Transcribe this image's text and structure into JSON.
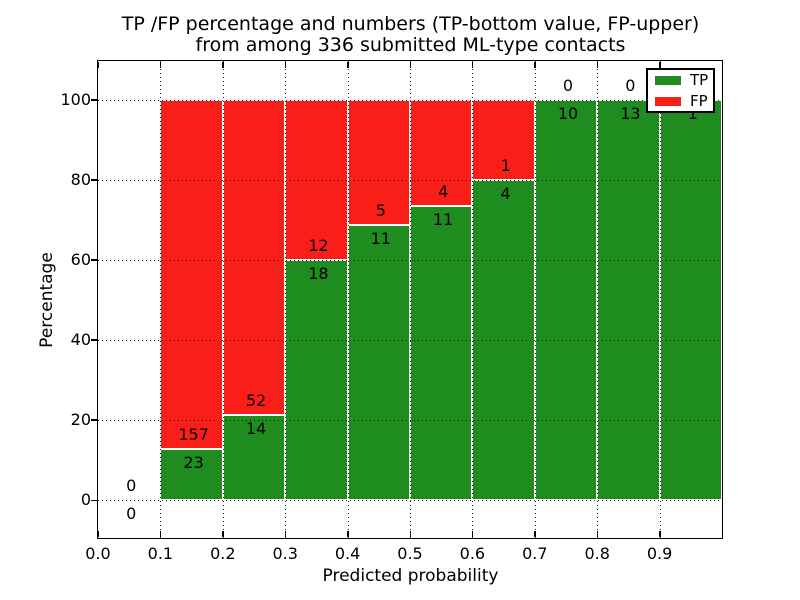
{
  "chart_data": {
    "type": "bar",
    "stacked": true,
    "title_line1": "TP /FP percentage and numbers (TP-bottom value, FP-upper)",
    "title_line2": "from among 336 submitted ML-type contacts",
    "xlabel": "Predicted probability",
    "ylabel": "Percentage",
    "xlim": [
      0.0,
      1.0
    ],
    "ylim": [
      -10,
      110
    ],
    "grid": "dotted both axes, drawn over bars",
    "yticks": [
      0,
      20,
      40,
      60,
      80,
      100
    ],
    "ytick_labels": [
      "0",
      "20",
      "40",
      "60",
      "80",
      "100"
    ],
    "xticks": [
      0.0,
      0.1,
      0.2,
      0.3,
      0.4,
      0.5,
      0.6,
      0.7,
      0.8,
      0.9
    ],
    "xtick_labels": [
      "0.0",
      "0.1",
      "0.2",
      "0.3",
      "0.4",
      "0.5",
      "0.6",
      "0.7",
      "0.8",
      "0.9"
    ],
    "bin_width": 0.1,
    "bins": [
      {
        "x_start": 0.0,
        "tp_count": 0,
        "fp_count": 0,
        "tp_pct": 0,
        "fp_pct": 0
      },
      {
        "x_start": 0.1,
        "tp_count": 23,
        "fp_count": 157,
        "tp_pct": 12.78,
        "fp_pct": 87.22
      },
      {
        "x_start": 0.2,
        "tp_count": 14,
        "fp_count": 52,
        "tp_pct": 21.21,
        "fp_pct": 78.79
      },
      {
        "x_start": 0.3,
        "tp_count": 18,
        "fp_count": 12,
        "tp_pct": 60.0,
        "fp_pct": 40.0
      },
      {
        "x_start": 0.4,
        "tp_count": 11,
        "fp_count": 5,
        "tp_pct": 68.75,
        "fp_pct": 31.25
      },
      {
        "x_start": 0.5,
        "tp_count": 11,
        "fp_count": 4,
        "tp_pct": 73.33,
        "fp_pct": 26.67
      },
      {
        "x_start": 0.6,
        "tp_count": 4,
        "fp_count": 1,
        "tp_pct": 80.0,
        "fp_pct": 20.0
      },
      {
        "x_start": 0.7,
        "tp_count": 10,
        "fp_count": 0,
        "tp_pct": 100.0,
        "fp_pct": 0
      },
      {
        "x_start": 0.8,
        "tp_count": 13,
        "fp_count": 0,
        "tp_pct": 100.0,
        "fp_pct": 0
      },
      {
        "x_start": 0.9,
        "tp_count": 1,
        "fp_count": 0,
        "tp_pct": 100.0,
        "fp_pct": 0
      }
    ],
    "legend": {
      "position": "upper right",
      "entries": [
        {
          "label": "TP",
          "color": "#1e8c1e"
        },
        {
          "label": "FP",
          "color": "#fa1e19"
        }
      ]
    },
    "colors": {
      "tp": "#1e8c1e",
      "fp": "#fa1e19",
      "grid": "#000000",
      "bar_edge": "#ffffff",
      "background": "#ffffff"
    }
  }
}
